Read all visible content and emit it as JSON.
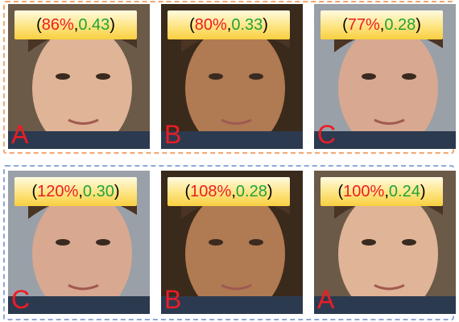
{
  "groups": [
    {
      "panels": [
        {
          "label": [
            "(",
            "86%",
            ",",
            "0.43",
            ")"
          ],
          "letter": "A"
        },
        {
          "label": [
            "(",
            "80%",
            ",",
            "0.33",
            ")"
          ],
          "letter": "B"
        },
        {
          "label": [
            "(",
            "77%",
            ",",
            "0.28",
            ")"
          ],
          "letter": "C"
        }
      ]
    },
    {
      "panels": [
        {
          "label": [
            "(",
            "120%",
            ",",
            "0.30",
            ")"
          ],
          "letter": "C"
        },
        {
          "label": [
            "(",
            "108%",
            ",",
            "0.28",
            ")"
          ],
          "letter": "B"
        },
        {
          "label": [
            "(",
            "100%",
            ",",
            "0.24",
            ")"
          ],
          "letter": "A"
        }
      ]
    }
  ]
}
